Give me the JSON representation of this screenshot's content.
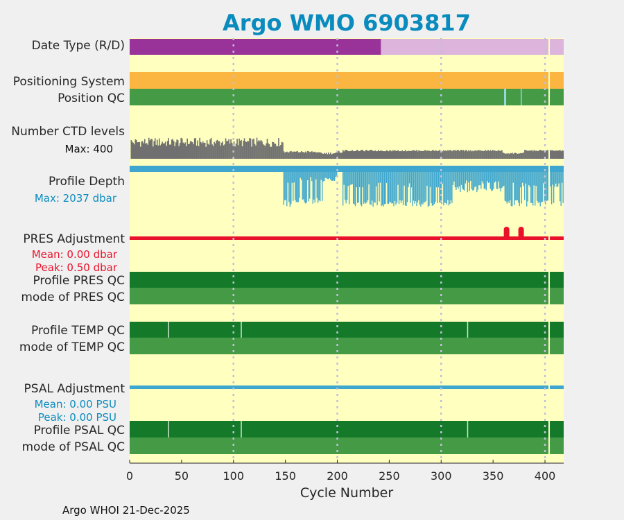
{
  "chart_data": {
    "type": "bar",
    "title": "Argo WMO 6903817",
    "xlabel": "Cycle Number",
    "xlim": [
      0,
      418
    ],
    "xticks": [
      "0",
      "50",
      "100",
      "150",
      "200",
      "250",
      "300",
      "350",
      "400"
    ],
    "xtick_values": [
      0,
      50,
      100,
      150,
      200,
      250,
      300,
      350,
      400
    ],
    "grid": "vertical-dotted",
    "colors": {
      "background": "#ffffc0",
      "realtime": "#993399",
      "delayed": "#dcb4dc",
      "positioning": "#fbb541",
      "qc_good": "#459a45",
      "qc_profile": "#147a2a",
      "ctd": "#707070",
      "depth": "#3fa6cf",
      "pres_adj": "#e8122b",
      "psal_adj": "#3fa6cf",
      "grid": "#c0c0d8"
    },
    "rows": {
      "date_type": {
        "label": "Date Type (R/D)",
        "segments": [
          {
            "from": 0,
            "to": 242,
            "mode": "R"
          },
          {
            "from": 242,
            "to": 418,
            "mode": "D"
          }
        ]
      },
      "positioning": {
        "label": "Positioning System"
      },
      "position_qc": {
        "label": "Position QC",
        "flagged_cycles": [
          361,
          362,
          377
        ]
      },
      "ctd_levels": {
        "label": "Number CTD levels",
        "max_label": "Max: 400",
        "max": 400
      },
      "profile_depth": {
        "label": "Profile Depth",
        "max_label": "Max: 2037 dbar",
        "max": 2037
      },
      "pres_adjustment": {
        "label": "PRES Adjustment",
        "mean_label": "Mean: 0.00 dbar",
        "peak_label": "Peak: 0.50 dbar",
        "bumps": [
          363,
          377
        ]
      },
      "profile_pres_qc": {
        "label": "Profile PRES QC"
      },
      "mode_pres_qc": {
        "label": "mode of PRES QC"
      },
      "profile_temp_qc": {
        "label": "Profile TEMP QC",
        "breaks": [
          37,
          107,
          325
        ]
      },
      "mode_temp_qc": {
        "label": "mode of TEMP QC"
      },
      "psal_adjustment": {
        "label": "PSAL Adjustment",
        "mean_label": "Mean: 0.00 PSU",
        "peak_label": "Peak: 0.00 PSU"
      },
      "profile_psal_qc": {
        "label": "Profile PSAL QC",
        "breaks": [
          37,
          107,
          325
        ]
      },
      "mode_psal_qc": {
        "label": "mode of PSAL QC"
      }
    },
    "current_cycle": 404
  },
  "footer": "Argo WHOI 21-Dec-2025"
}
